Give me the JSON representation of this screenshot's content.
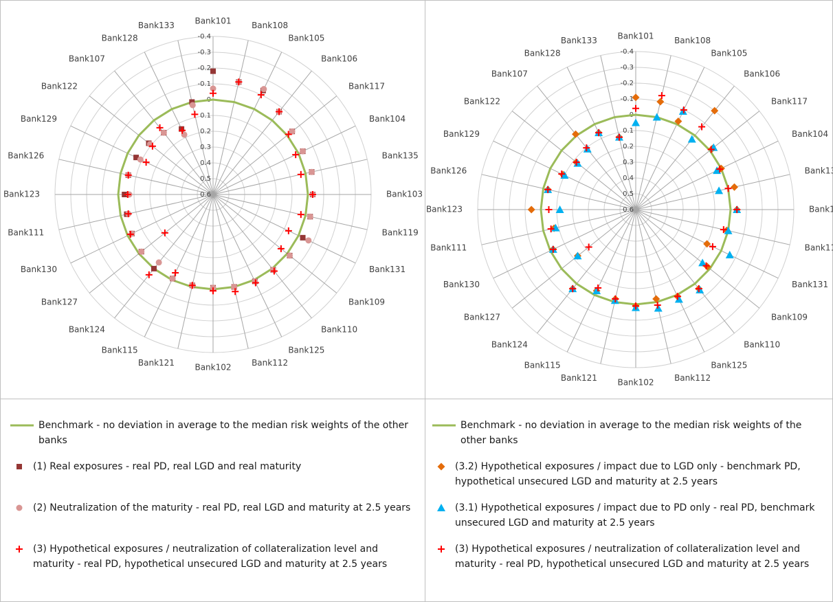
{
  "chart_data": [
    {
      "type": "radar",
      "categories": [
        "Bank101",
        "Bank108",
        "Bank105",
        "Bank106",
        "Bank117",
        "Bank104",
        "Bank135",
        "Bank103",
        "Bank119",
        "Bank131",
        "Bank109",
        "Bank110",
        "Bank125",
        "Bank112",
        "Bank102",
        "Bank121",
        "Bank115",
        "Bank124",
        "Bank127",
        "Bank130",
        "Bank111",
        "Bank123",
        "Bank126",
        "Bank129",
        "Bank122",
        "Bank107",
        "Bank128",
        "Bank133"
      ],
      "rlim": [
        0.6,
        -0.4
      ],
      "rticks": [
        -0.4,
        -0.3,
        -0.2,
        -0.1,
        0,
        0.1,
        0.2,
        0.3,
        0.4,
        0.5,
        0.6
      ],
      "grid": true,
      "legend": "bottom",
      "series": [
        {
          "name": "Benchmark - no deviation in average to the median risk weights of the other banks",
          "color": "#9bbb59",
          "marker": "line",
          "values": [
            0,
            0,
            0,
            0,
            0,
            0,
            0,
            0,
            0,
            0,
            0,
            0,
            0,
            0,
            0,
            0,
            0,
            0,
            0,
            0,
            0,
            0,
            0,
            0,
            0,
            0,
            0,
            0
          ]
        },
        {
          "name": "(1) Real exposures - real PD, real LGD and real maturity",
          "color": "#953735",
          "marker": "square",
          "values": [
            -0.18,
            -0.13,
            -0.13,
            -0.07,
            -0.04,
            -0.03,
            -0.04,
            -0.03,
            -0.03,
            -0.03,
            -0.02,
            -0.01,
            -0.01,
            0,
            0.01,
            0.01,
            0.01,
            0,
            0.02,
            0.03,
            0.04,
            0.04,
            0.05,
            0.06,
            0.08,
            0.1,
            0.14,
            0
          ]
        },
        {
          "name": "(2) Neutralization of the maturity - real PD, real LGD and maturity at 2.5 years",
          "color": "#d99694",
          "marker": "circle",
          "values": [
            -0.07,
            -0.13,
            -0.14,
            -0.07,
            -0.04,
            -0.03,
            -0.04,
            -0.03,
            -0.03,
            -0.07,
            -0.02,
            -0.01,
            -0.01,
            0,
            0.01,
            0.01,
            0.01,
            0.05,
            0.02,
            0.03,
            0.05,
            0.07,
            0.05,
            0.09,
            0.09,
            0.1,
            0.18,
            0.02
          ]
        },
        {
          "name": "(3) Hypothetical exposures / neutralization of collateralization level and maturity - real PD, hypothetical unsecured LGD and maturity at 2.5 years",
          "color": "#ff0000",
          "marker": "plus",
          "values": [
            -0.04,
            -0.13,
            -0.1,
            -0.07,
            -0.01,
            0.02,
            0.03,
            -0.03,
            0.03,
            0.07,
            0.05,
            -0.02,
            -0.02,
            -0.03,
            -0.01,
            0.01,
            0.05,
            -0.05,
            0.21,
            0.02,
            0.05,
            0.06,
            0.05,
            0.13,
            0.11,
            0.06,
            0.15,
            0.08
          ]
        }
      ]
    },
    {
      "type": "radar",
      "categories": [
        "Bank101",
        "Bank108",
        "Bank105",
        "Bank106",
        "Bank117",
        "Bank104",
        "Bank135",
        "Bank103",
        "Bank119",
        "Bank131",
        "Bank109",
        "Bank110",
        "Bank125",
        "Bank112",
        "Bank102",
        "Bank121",
        "Bank115",
        "Bank124",
        "Bank127",
        "Bank130",
        "Bank111",
        "Bank123",
        "Bank126",
        "Bank129",
        "Bank122",
        "Bank107",
        "Bank128",
        "Bank133"
      ],
      "rlim": [
        0.6,
        -0.4
      ],
      "rticks": [
        -0.4,
        -0.3,
        -0.2,
        -0.1,
        0,
        0.1,
        0.2,
        0.3,
        0.4,
        0.5,
        0.6
      ],
      "grid": true,
      "legend": "bottom",
      "series": [
        {
          "name": "Benchmark - no deviation in average to the median risk weights of the other banks",
          "color": "#9bbb59",
          "marker": "line",
          "values": [
            0,
            0,
            0,
            0,
            0,
            0,
            0,
            0,
            0,
            0,
            0,
            0,
            0,
            0,
            0,
            0,
            0,
            0,
            0,
            0,
            0,
            0,
            0,
            0,
            0,
            0,
            0,
            0
          ]
        },
        {
          "name": "(3.2) Hypothetical exposures / impact due to LGD only  - benchmark PD, hypothetical unsecured LGD and maturity at 2.5 years",
          "color": "#e46c0a",
          "marker": "diamond",
          "values": [
            -0.11,
            -0.1,
            -0.02,
            -0.2,
            -0.02,
            0,
            -0.04,
            -0.04,
            0.01,
            0.1,
            0.02,
            -0.04,
            -0.01,
            0.02,
            -0.01,
            0.02,
            0.03,
            -0.04,
            0.13,
            0.02,
            0.07,
            -0.06,
            0.03,
            0.09,
            0.12,
            -0.01,
            0.06,
            0.13
          ]
        },
        {
          "name": "(3.1) Hypothetical exposures / impact due to PD only  - real PD, benchmark unsecured LGD and maturity at 2.5 years",
          "color": "#00b0f0",
          "marker": "triangle",
          "values": [
            0.05,
            0,
            -0.09,
            0.03,
            -0.03,
            0.03,
            0.06,
            -0.04,
            0,
            -0.06,
            0.06,
            -0.05,
            -0.03,
            -0.04,
            -0.02,
            0.01,
            0.03,
            -0.04,
            0.13,
            0.02,
            0.08,
            0.12,
            0.03,
            0.1,
            0.13,
            0.11,
            0.06,
            0.13
          ]
        },
        {
          "name": "(3) Hypothetical exposures / neutralization of collateralization level and maturity - real PD, hypothetical unsecured LGD and maturity at 2.5 years",
          "color": "#ff0000",
          "marker": "plus",
          "values": [
            -0.04,
            -0.14,
            -0.1,
            -0.07,
            -0.01,
            0.01,
            0,
            -0.04,
            0.03,
            0.06,
            0.03,
            -0.04,
            -0.01,
            -0.02,
            -0.01,
            0.02,
            0.05,
            -0.04,
            0.22,
            0.02,
            0.05,
            0.05,
            0.03,
            0.08,
            0.12,
            0.1,
            0.06,
            0.13
          ]
        }
      ]
    }
  ]
}
